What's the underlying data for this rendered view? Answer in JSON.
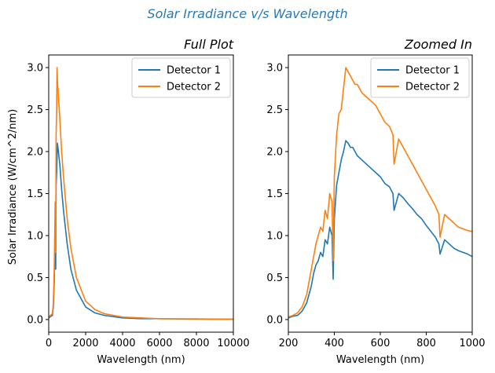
{
  "suptitle": "Solar Irradiance v/s Wavelength",
  "suptitle_color": "#2a7ab5",
  "series_colors": [
    "#1f77b4",
    "#ff7f0e"
  ],
  "chart_data": [
    {
      "type": "line",
      "title": "Full Plot",
      "xlabel": "Wavelength (nm)",
      "ylabel": "Solar Irradiance (W/cm^2/nm)",
      "xlim": [
        0,
        10000
      ],
      "ylim": [
        -0.15,
        3.15
      ],
      "xticks": [
        0,
        2000,
        4000,
        6000,
        8000,
        10000
      ],
      "xtick_labels": [
        "0",
        "2000",
        "4000",
        "6000",
        "8000",
        "10000"
      ],
      "yticks": [
        0.0,
        0.5,
        1.0,
        1.5,
        2.0,
        2.5,
        3.0
      ],
      "ytick_labels": [
        "0.0",
        "0.5",
        "1.0",
        "1.5",
        "2.0",
        "2.5",
        "3.0"
      ],
      "legend": "top-right",
      "grid": false,
      "series": [
        {
          "name": "Detector 1",
          "x": [
            0,
            200,
            250,
            300,
            350,
            380,
            400,
            430,
            470,
            500,
            600,
            700,
            800,
            1000,
            1200,
            1500,
            2000,
            2500,
            3000,
            4000,
            5000,
            6000,
            8000,
            10000
          ],
          "y": [
            0.02,
            0.05,
            0.15,
            0.45,
            1.1,
            0.6,
            1.6,
            1.75,
            2.1,
            2.05,
            1.85,
            1.55,
            1.3,
            0.9,
            0.6,
            0.35,
            0.15,
            0.08,
            0.05,
            0.02,
            0.01,
            0.01,
            0.005,
            0.003
          ]
        },
        {
          "name": "Detector 2",
          "x": [
            0,
            200,
            250,
            300,
            350,
            380,
            400,
            430,
            450,
            480,
            500,
            600,
            700,
            800,
            1000,
            1200,
            1500,
            2000,
            2500,
            3000,
            4000,
            5000,
            6000,
            8000,
            10000
          ],
          "y": [
            0.03,
            0.07,
            0.2,
            0.6,
            1.4,
            0.8,
            2.2,
            2.5,
            3.0,
            2.8,
            2.75,
            2.4,
            2.0,
            1.7,
            1.2,
            0.85,
            0.5,
            0.22,
            0.12,
            0.07,
            0.03,
            0.02,
            0.01,
            0.008,
            0.005
          ]
        }
      ]
    },
    {
      "type": "line",
      "title": "Zoomed In",
      "xlabel": "Wavelength (nm)",
      "ylabel": "",
      "xlim": [
        200,
        1000
      ],
      "ylim": [
        -0.15,
        3.15
      ],
      "xticks": [
        200,
        400,
        600,
        800,
        1000
      ],
      "xtick_labels": [
        "200",
        "400",
        "600",
        "800",
        "1000"
      ],
      "yticks": [
        0.0,
        0.5,
        1.0,
        1.5,
        2.0,
        2.5,
        3.0
      ],
      "ytick_labels": [
        "0.0",
        "0.5",
        "1.0",
        "1.5",
        "2.0",
        "2.5",
        "3.0"
      ],
      "legend": "top-right",
      "grid": false,
      "series": [
        {
          "name": "Detector 1",
          "x": [
            200,
            220,
            240,
            260,
            280,
            290,
            300,
            310,
            320,
            330,
            340,
            350,
            360,
            370,
            380,
            390,
            395,
            400,
            410,
            420,
            430,
            440,
            450,
            460,
            470,
            480,
            490,
            500,
            520,
            540,
            560,
            580,
            600,
            620,
            640,
            655,
            660,
            680,
            700,
            720,
            740,
            760,
            780,
            800,
            820,
            840,
            855,
            860,
            880,
            900,
            920,
            940,
            960,
            980,
            1000
          ],
          "y": [
            0.02,
            0.04,
            0.05,
            0.1,
            0.2,
            0.3,
            0.4,
            0.55,
            0.65,
            0.7,
            0.8,
            0.75,
            0.95,
            0.9,
            1.1,
            1.0,
            0.48,
            1.2,
            1.6,
            1.75,
            1.9,
            2.0,
            2.13,
            2.1,
            2.05,
            2.05,
            2.0,
            1.95,
            1.9,
            1.85,
            1.8,
            1.75,
            1.7,
            1.62,
            1.58,
            1.5,
            1.3,
            1.5,
            1.45,
            1.38,
            1.32,
            1.25,
            1.2,
            1.12,
            1.05,
            0.98,
            0.9,
            0.78,
            0.95,
            0.9,
            0.85,
            0.82,
            0.8,
            0.78,
            0.75
          ]
        },
        {
          "name": "Detector 2",
          "x": [
            200,
            220,
            240,
            260,
            280,
            290,
            300,
            310,
            320,
            330,
            340,
            350,
            360,
            370,
            380,
            390,
            395,
            400,
            410,
            420,
            430,
            440,
            450,
            460,
            470,
            480,
            490,
            500,
            520,
            540,
            560,
            580,
            600,
            620,
            640,
            655,
            660,
            680,
            700,
            720,
            740,
            760,
            780,
            800,
            820,
            840,
            855,
            860,
            880,
            900,
            920,
            940,
            960,
            980,
            1000
          ],
          "y": [
            0.03,
            0.05,
            0.08,
            0.15,
            0.3,
            0.45,
            0.6,
            0.75,
            0.9,
            1.0,
            1.1,
            1.05,
            1.3,
            1.2,
            1.5,
            1.4,
            0.7,
            1.7,
            2.2,
            2.45,
            2.5,
            2.75,
            3.0,
            2.95,
            2.9,
            2.85,
            2.8,
            2.8,
            2.7,
            2.65,
            2.6,
            2.55,
            2.45,
            2.35,
            2.3,
            2.2,
            1.85,
            2.15,
            2.05,
            1.95,
            1.85,
            1.75,
            1.65,
            1.55,
            1.45,
            1.35,
            1.25,
            0.98,
            1.25,
            1.2,
            1.15,
            1.1,
            1.08,
            1.06,
            1.05
          ]
        }
      ]
    }
  ]
}
